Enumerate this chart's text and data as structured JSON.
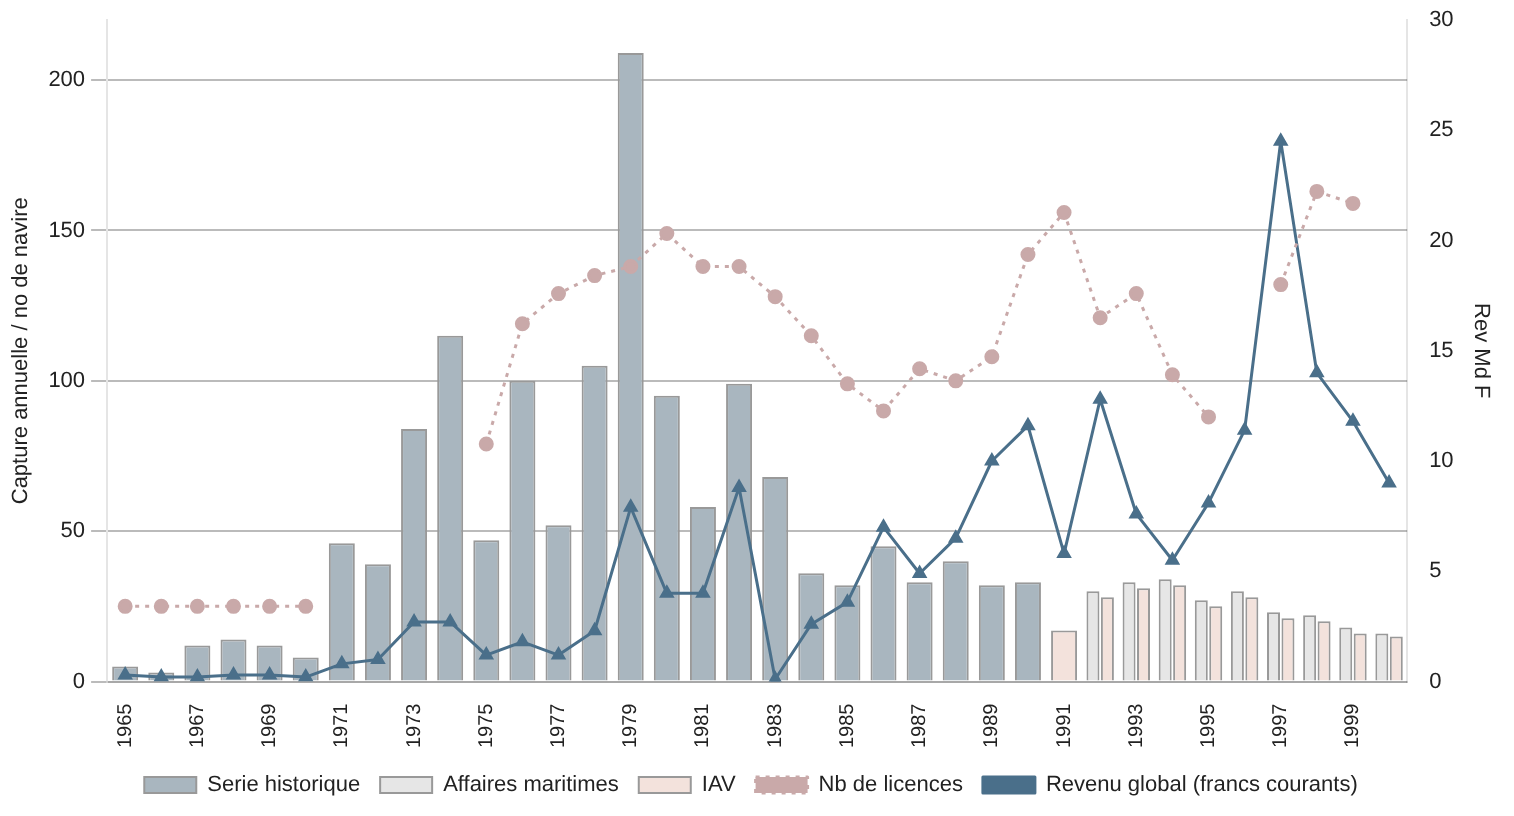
{
  "chart_data": {
    "type": "bar",
    "ylabel": "Capture annuelle / no de navire",
    "y2label": "Rev Md F",
    "categories": [
      "1965",
      null,
      "1967",
      null,
      "1969",
      null,
      "1971",
      null,
      "1973",
      null,
      "1975",
      null,
      "1977",
      null,
      "1979",
      null,
      "1981",
      null,
      "1983",
      null,
      "1985",
      null,
      "1987",
      null,
      "1989",
      null,
      "1991",
      null,
      "1993",
      null,
      "1995",
      null,
      "1997",
      null,
      "1999",
      null
    ],
    "series": [
      {
        "name": "Serie historique",
        "color": "#a9b6bf",
        "values": [
          5,
          3,
          12,
          14,
          12,
          8,
          46,
          39,
          84,
          115,
          47,
          100,
          52,
          105,
          209,
          95,
          58,
          99,
          68,
          36,
          32,
          45,
          33,
          40,
          32,
          33,
          null,
          null,
          null,
          null,
          null,
          null,
          null,
          null,
          null,
          null
        ]
      },
      {
        "name": "Affaires maritimes",
        "color": "#e6e6e6",
        "values": [
          null,
          null,
          null,
          null,
          null,
          null,
          null,
          null,
          null,
          null,
          null,
          null,
          null,
          null,
          null,
          null,
          null,
          null,
          null,
          null,
          null,
          null,
          null,
          null,
          null,
          null,
          null,
          30,
          33,
          34,
          27,
          30,
          23,
          22,
          18,
          16
        ]
      },
      {
        "name": "IAV",
        "color": "#f3e2dc",
        "values": [
          null,
          null,
          null,
          null,
          null,
          null,
          null,
          null,
          null,
          null,
          null,
          null,
          null,
          null,
          null,
          null,
          null,
          null,
          null,
          null,
          null,
          null,
          null,
          null,
          null,
          null,
          17,
          28,
          31,
          32,
          25,
          28,
          21,
          20,
          16,
          15
        ]
      },
      {
        "name": "Nb de licences",
        "type": "line",
        "color": "#c9a9a9",
        "line_style": "dotted",
        "marker": "circle",
        "values": [
          25,
          25,
          25,
          25,
          25,
          25,
          null,
          null,
          null,
          null,
          79,
          119,
          129,
          135,
          138,
          149,
          138,
          138,
          128,
          115,
          99,
          90,
          104,
          100,
          108,
          142,
          156,
          121,
          129,
          102,
          88,
          null,
          132,
          163,
          159,
          null
        ]
      },
      {
        "name": "Revenu global (francs courants)",
        "type": "line",
        "axis": "y2",
        "color": "#4a6f8a",
        "line_style": "solid",
        "marker": "triangle",
        "values": [
          0.3,
          0.2,
          0.2,
          0.3,
          0.3,
          0.2,
          0.8,
          1.0,
          2.7,
          2.7,
          1.2,
          1.8,
          1.2,
          2.3,
          7.9,
          4.0,
          4.0,
          8.8,
          0.1,
          2.6,
          3.6,
          7.0,
          4.9,
          6.5,
          10.0,
          11.6,
          5.8,
          12.8,
          7.6,
          5.5,
          8.1,
          11.4,
          24.5,
          14.0,
          11.8,
          9.0
        ]
      }
    ],
    "ylim": [
      0,
      220
    ],
    "yticks": [
      0,
      50,
      100,
      150,
      200
    ],
    "y2lim": [
      0,
      30
    ],
    "y2ticks": [
      0,
      5,
      10,
      15,
      20,
      25,
      30
    ],
    "grid": "y",
    "legend": "bottom"
  }
}
